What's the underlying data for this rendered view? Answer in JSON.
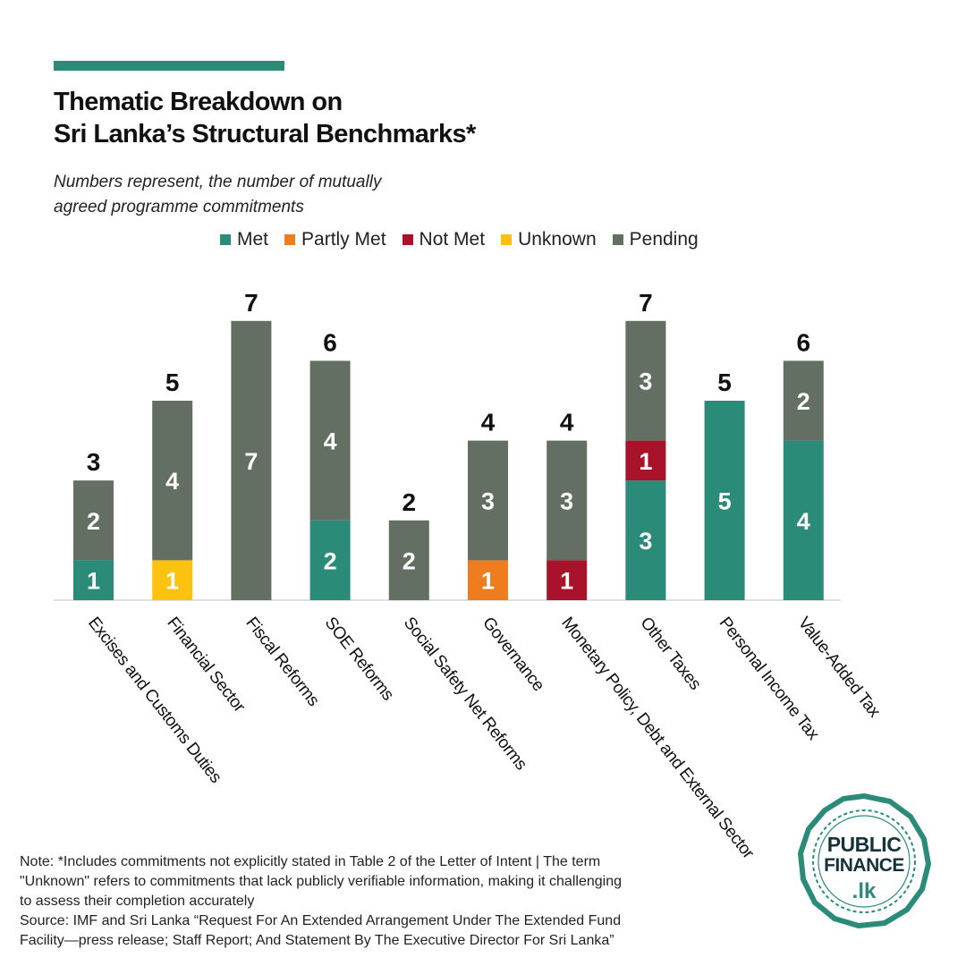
{
  "title_lines": [
    "Thematic Breakdown on",
    "Sri Lanka’s Structural Benchmarks*"
  ],
  "subtitle_lines": [
    "Numbers represent, the number of mutually",
    "agreed programme commitments"
  ],
  "legend": [
    {
      "label": "Met",
      "color": "#2a8c78"
    },
    {
      "label": "Partly Met",
      "color": "#ee7d1f"
    },
    {
      "label": "Not Met",
      "color": "#a8122a"
    },
    {
      "label": "Unknown",
      "color": "#fdc20f"
    },
    {
      "label": "Pending",
      "color": "#646f64"
    }
  ],
  "chart_data": {
    "type": "bar",
    "stacked": true,
    "categories": [
      "Excises and Customs Duties",
      "Financial Sector",
      "Fiscal Reforms",
      "SOE Reforms",
      "Social Safety Net Reforms",
      "Governance",
      "Monetary Policy, Debt and External Sector",
      "Other Taxes",
      "Personal Income Tax",
      "Value-Added Tax"
    ],
    "series": [
      {
        "name": "Met",
        "color": "#2a8c78",
        "values": [
          1,
          0,
          0,
          2,
          0,
          0,
          0,
          3,
          5,
          4
        ]
      },
      {
        "name": "Partly Met",
        "color": "#ee7d1f",
        "values": [
          0,
          0,
          0,
          0,
          0,
          1,
          0,
          0,
          0,
          0
        ]
      },
      {
        "name": "Not Met",
        "color": "#a8122a",
        "values": [
          0,
          0,
          0,
          0,
          0,
          0,
          1,
          1,
          0,
          0
        ]
      },
      {
        "name": "Unknown",
        "color": "#fdc20f",
        "values": [
          0,
          1,
          0,
          0,
          0,
          0,
          0,
          0,
          0,
          0
        ]
      },
      {
        "name": "Pending",
        "color": "#646f64",
        "values": [
          2,
          4,
          7,
          4,
          2,
          3,
          3,
          3,
          0,
          2
        ]
      }
    ],
    "totals": [
      3,
      5,
      7,
      6,
      2,
      4,
      4,
      7,
      5,
      6
    ],
    "ylim": [
      0,
      7
    ],
    "grid": false,
    "legend_position": "top"
  },
  "note_lines": [
    "Note: *Includes  commitments not explicitly stated in Table 2 of the Letter of Intent | The term",
    "\"Unknown\" refers to commitments that lack publicly verifiable information, making it challenging",
    "to assess their completion accurately",
    "Source: IMF and Sri Lanka “Request For An Extended Arrangement Under The Extended Fund",
    "Facility—press release; Staff Report; And Statement By The Executive Director For Sri Lanka”"
  ],
  "logo": {
    "line1": "PUBLIC",
    "line2": "FINANCE",
    "line3": ".lk",
    "color": "#2a8c78"
  }
}
